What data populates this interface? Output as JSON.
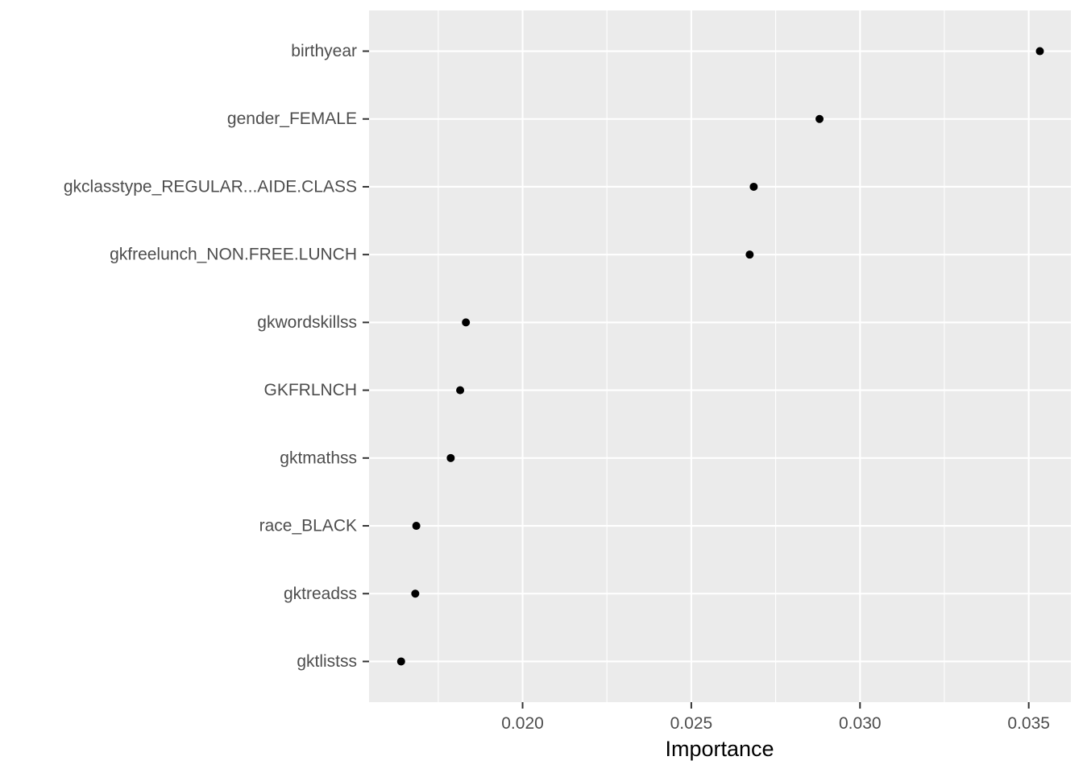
{
  "chart_data": {
    "type": "scatter",
    "xlabel": "Importance",
    "ylabel": "",
    "title": "",
    "xlim": [
      0.01545,
      0.03625
    ],
    "x_ticks": [
      0.02,
      0.025,
      0.03,
      0.035
    ],
    "x_tick_labels": [
      "0.020",
      "0.025",
      "0.030",
      "0.035"
    ],
    "grid": true,
    "background": "#ebebeb",
    "grid_color": "#ffffff",
    "point_color": "#000000",
    "categories": [
      "birthyear",
      "gender_FEMALE",
      "gkclasstype_REGULAR...AIDE.CLASS",
      "gkfreelunch_NON.FREE.LUNCH",
      "gkwordskillss",
      "GKFRLNCH",
      "gktmathss",
      "race_BLACK",
      "gktreadss",
      "gktlistss"
    ],
    "values": [
      0.03533,
      0.0288,
      0.02685,
      0.02673,
      0.01832,
      0.01815,
      0.01787,
      0.01685,
      0.01682,
      0.0164
    ]
  }
}
